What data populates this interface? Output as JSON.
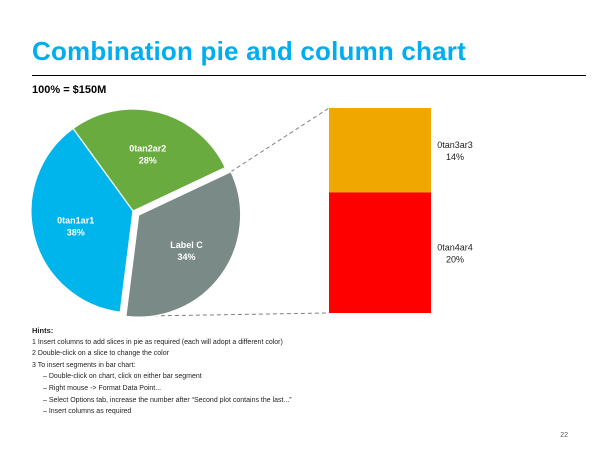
{
  "title": "Combination pie and column chart",
  "subtitle": "100% = $150M",
  "chart_data": {
    "type": "pie",
    "variant": "bar-of-pie",
    "pie_slices": [
      {
        "label": "0tan2ar2",
        "value": 28,
        "value_label": "28%",
        "color": "#6aab40"
      },
      {
        "label": "Label C",
        "value": 34,
        "value_label": "34%",
        "color": "#7a8a87"
      },
      {
        "label": "0tan1ar1",
        "value": 38,
        "value_label": "38%",
        "color": "#00b4ec"
      }
    ],
    "stacked_column": [
      {
        "label": "0tan3ar3",
        "value": 14,
        "value_label": "14%",
        "color": "#f0a800"
      },
      {
        "label": "0tan4ar4",
        "value": 20,
        "value_label": "20%",
        "color": "#ff0000"
      }
    ],
    "exploded_slice": "Label C"
  },
  "hints": {
    "title": "Hints:",
    "lines": [
      {
        "text": "1  Insert columns to add slices in pie as required (each will adopt a different color)",
        "sub": false
      },
      {
        "text": "2  Double-click on a slice to change the color",
        "sub": false
      },
      {
        "text": "3  To insert segments in bar chart:",
        "sub": false
      },
      {
        "text": "– Double-click on chart, click on either bar segment",
        "sub": true
      },
      {
        "text": "– Right mouse -> Format Data Point...",
        "sub": true
      },
      {
        "text": "– Select Options tab, increase the number after “Second plot contains the last...”",
        "sub": true
      },
      {
        "text": "– Insert columns as required",
        "sub": true
      }
    ]
  },
  "page_number": "22"
}
